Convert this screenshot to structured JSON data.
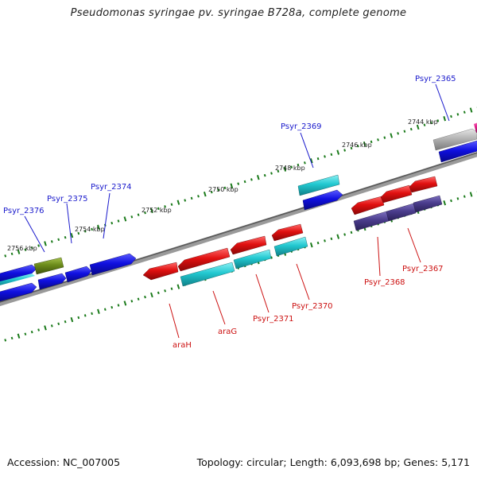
{
  "title": "Pseudomonas syringae pv. syringae B728a, complete genome",
  "footer": {
    "accession": "Accession: NC_007005",
    "summary": "Topology: circular; Length: 6,093,698 bp; Genes: 5,171"
  },
  "tick_labels": [
    "2744 kbp",
    "2746 kbp",
    "2748 kbp",
    "2750 kbp",
    "2752 kbp",
    "2754 kbp",
    "2756 kbp"
  ],
  "gene_labels": {
    "forward": [
      "Psyr_2365",
      "Psyr_2369",
      "Psyr_2374",
      "Psyr_2375",
      "Psyr_2376"
    ],
    "reverse": [
      "Psyr_2367",
      "Psyr_2368",
      "Psyr_2370",
      "Psyr_2371",
      "araG",
      "araH"
    ]
  },
  "colors": {
    "backbone": "#808080",
    "forward_label": "#1a1acc",
    "reverse_label": "#cc1111",
    "gene_blue": "#1010e0",
    "gene_cyan": "#22c8d0",
    "gene_red": "#e01010",
    "gene_navy": "#4a3c8c",
    "gene_olive": "#6b8a1a",
    "gene_gray": "#b4b4b4",
    "gene_magenta": "#e0208c",
    "tick": "#1a7a1a"
  }
}
